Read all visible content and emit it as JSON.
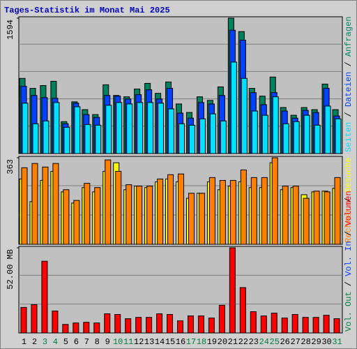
{
  "title": "Tages-Statistik im Monat Mai 2025",
  "legend_separator": " / ",
  "chart_data": [
    {
      "type": "bar",
      "ylim": [
        0,
        1594
      ],
      "yticks": [
        1594
      ],
      "series": [
        {
          "name": "Anfragen",
          "color": "#00805c",
          "values": [
            885,
            768,
            801,
            851,
            376,
            609,
            517,
            459,
            810,
            684,
            668,
            760,
            826,
            709,
            843,
            584,
            484,
            668,
            626,
            785,
            1594,
            1436,
            768,
            676,
            901,
            542,
            451,
            542,
            517,
            818,
            517
          ]
        },
        {
          "name": "Dateien",
          "color": "#0040ff",
          "values": [
            793,
            684,
            659,
            651,
            351,
            593,
            459,
            426,
            684,
            676,
            643,
            693,
            751,
            643,
            768,
            476,
            417,
            601,
            584,
            684,
            1452,
            1335,
            718,
            576,
            718,
            501,
            417,
            509,
            484,
            768,
            442
          ]
        },
        {
          "name": "Seiten",
          "color": "#00e0ff",
          "values": [
            593,
            351,
            384,
            601,
            309,
            551,
            342,
            334,
            568,
            601,
            584,
            601,
            601,
            593,
            526,
            351,
            334,
            409,
            467,
            384,
            1077,
            885,
            501,
            451,
            668,
            351,
            376,
            451,
            334,
            559,
            409
          ]
        }
      ]
    },
    {
      "type": "bar",
      "ylim": [
        0,
        363
      ],
      "yticks": [
        363
      ],
      "series": [
        {
          "name": "Besuche",
          "color": "#ffff00",
          "values": [
            274,
            179,
            268,
            306,
            220,
            173,
            238,
            220,
            306,
            342,
            229,
            244,
            238,
            262,
            274,
            262,
            193,
            214,
            262,
            229,
            244,
            262,
            238,
            238,
            342,
            229,
            238,
            208,
            220,
            223,
            235
          ]
        },
        {
          "name": "Rechner",
          "color": "#ff8000",
          "values": [
            321,
            339,
            324,
            339,
            229,
            184,
            256,
            238,
            354,
            306,
            250,
            244,
            244,
            274,
            292,
            295,
            214,
            214,
            280,
            268,
            268,
            312,
            280,
            280,
            363,
            244,
            244,
            193,
            223,
            220,
            280
          ]
        }
      ]
    },
    {
      "type": "bar",
      "ylim": [
        0,
        52
      ],
      "yticks": [
        {
          "value": 52,
          "label": "52.00 MB"
        }
      ],
      "categories": [
        "1",
        "2",
        "3",
        "4",
        "5",
        "6",
        "7",
        "8",
        "9",
        "10",
        "11",
        "12",
        "13",
        "14",
        "15",
        "16",
        "17",
        "18",
        "19",
        "20",
        "21",
        "22",
        "23",
        "24",
        "25",
        "26",
        "27",
        "28",
        "29",
        "30",
        "31"
      ],
      "category_colors": [
        "#000000",
        "#000000",
        "#008040",
        "#008040",
        "#000000",
        "#000000",
        "#000000",
        "#000000",
        "#000000",
        "#008040",
        "#008040",
        "#000000",
        "#000000",
        "#000000",
        "#000000",
        "#000000",
        "#008040",
        "#008040",
        "#000000",
        "#000000",
        "#000000",
        "#000000",
        "#000000",
        "#008040",
        "#008040",
        "#000000",
        "#000000",
        "#000000",
        "#000000",
        "#000000",
        "#008040"
      ],
      "series": [
        {
          "name": "Volumen",
          "color": "#ff0000",
          "values": [
            15.6,
            17.3,
            43.8,
            13.4,
            5.2,
            6.1,
            6.5,
            6.1,
            11.7,
            11.3,
            8.7,
            9.5,
            9.5,
            11.7,
            11.3,
            7.4,
            10.4,
            10.4,
            9.1,
            16.9,
            52.0,
            27.7,
            13.0,
            10.4,
            12.1,
            9.1,
            11.3,
            9.5,
            9.5,
            10.8,
            8.7
          ]
        }
      ],
      "extra_legend": [
        {
          "name": "Vol. In",
          "color": "#0040ff"
        },
        {
          "name": "Vol. Out",
          "color": "#008040"
        }
      ]
    }
  ]
}
